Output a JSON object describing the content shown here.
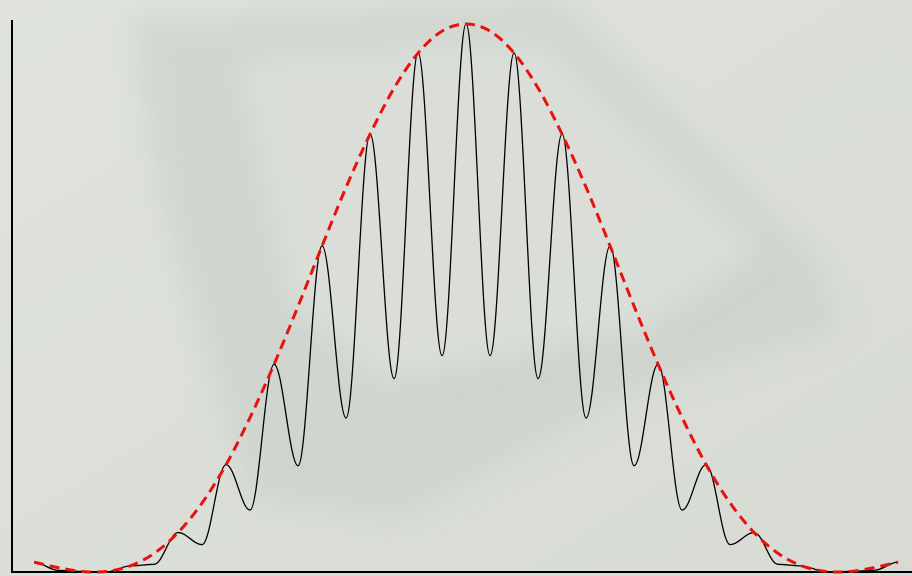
{
  "chart_data": {
    "type": "line",
    "x": [
      -18,
      -17,
      -16,
      -15,
      -14,
      -13,
      -12,
      -11,
      -10,
      -9,
      -8,
      -7,
      -6,
      -5,
      -4,
      -3,
      -2,
      -1,
      0,
      1,
      2,
      3,
      4,
      5,
      6,
      7,
      8,
      9,
      10,
      11,
      12,
      13,
      14,
      15,
      16,
      17,
      18
    ],
    "series": [
      {
        "color": "#000000",
        "style": "solid",
        "values": [
          0.018,
          0.003,
          0.001,
          0,
          0.011,
          0.014,
          0.072,
          0.05,
          0.196,
          0.113,
          0.379,
          0.194,
          0.595,
          0.281,
          0.799,
          0.353,
          0.947,
          0.395,
          1,
          0.395,
          0.947,
          0.353,
          0.799,
          0.281,
          0.595,
          0.194,
          0.379,
          0.113,
          0.196,
          0.05,
          0.072,
          0.014,
          0.011,
          0,
          0.001,
          0.003,
          0.018
        ]
      },
      {
        "color": "#e8120c",
        "style": "dashed",
        "values": [
          0.018,
          0.008,
          0.001,
          0.001,
          0.011,
          0.034,
          0.072,
          0.126,
          0.196,
          0.282,
          0.379,
          0.485,
          0.595,
          0.702,
          0.799,
          0.883,
          0.947,
          0.987,
          1,
          0.987,
          0.947,
          0.883,
          0.799,
          0.702,
          0.595,
          0.485,
          0.379,
          0.282,
          0.196,
          0.126,
          0.072,
          0.034,
          0.011,
          0.001,
          0.001,
          0.008,
          0.018
        ]
      }
    ],
    "xlim": [
      -18.92,
      18.58
    ],
    "ylim": [
      0,
      1
    ]
  }
}
